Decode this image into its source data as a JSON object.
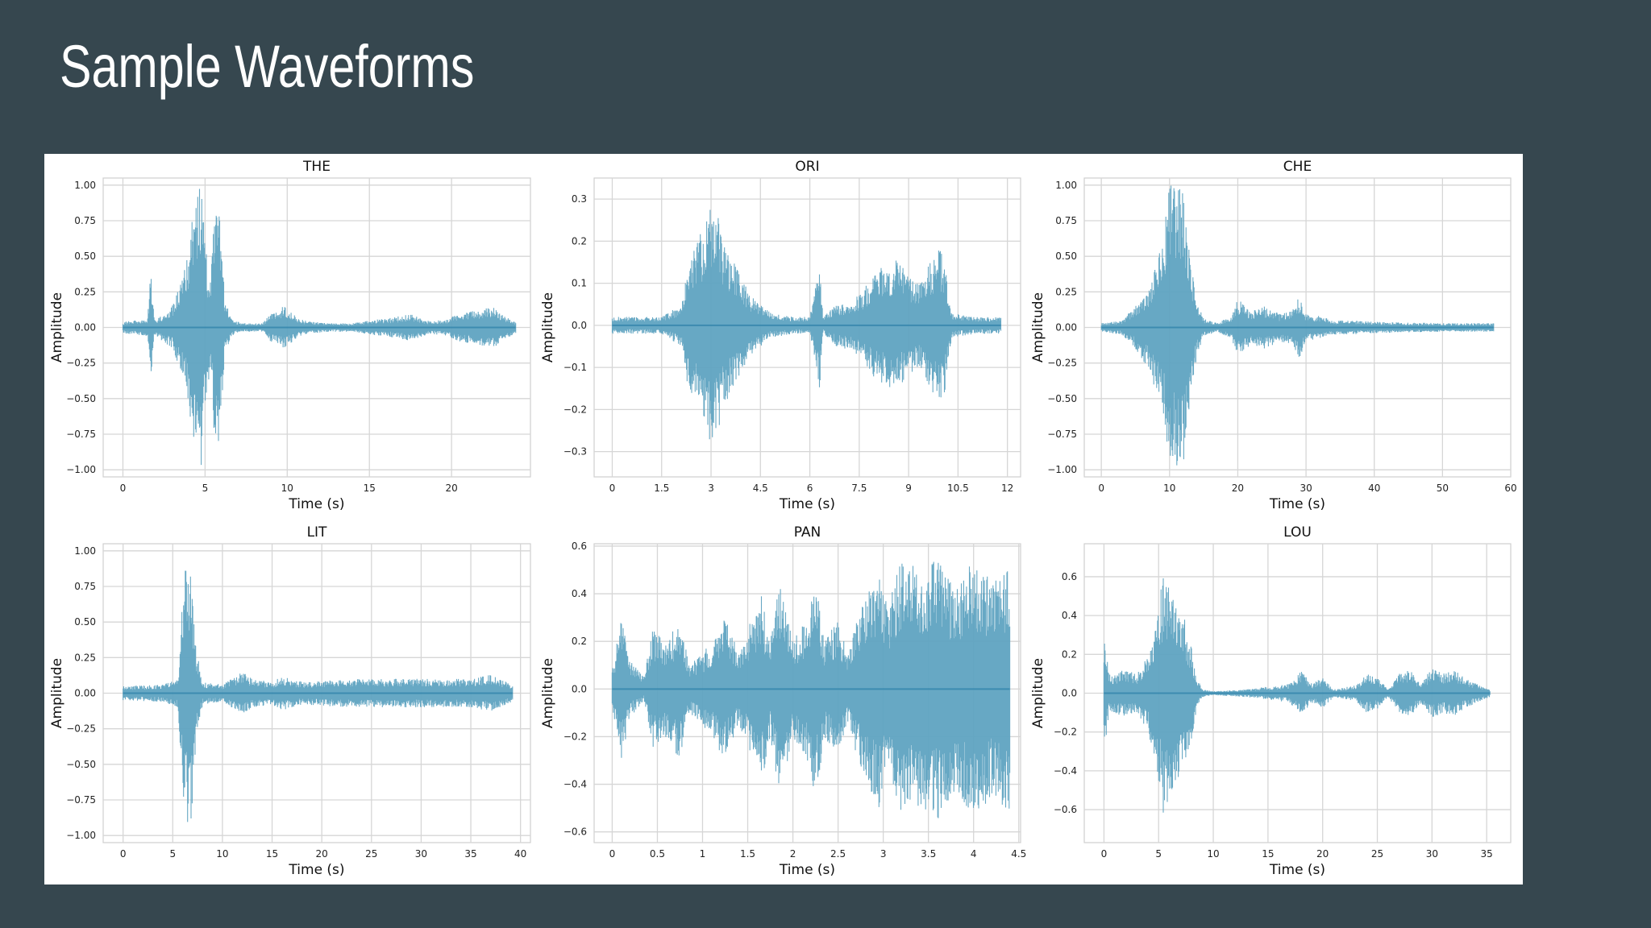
{
  "slide": {
    "title": "Sample Waveforms"
  },
  "colors": {
    "background": "#36474f",
    "panel": "#ffffff",
    "wave": "#5fa3c1",
    "wave_edge": "#3c8bb0",
    "grid": "#d6d6d6"
  },
  "chart_data": [
    {
      "type": "line",
      "title": "THE",
      "xlabel": "Time (s)",
      "ylabel": "Amplitude",
      "xlim": [
        -1.2,
        24.8
      ],
      "ylim": [
        -1.05,
        1.05
      ],
      "xticks": [
        0,
        5,
        10,
        15,
        20
      ],
      "xtick_labels": [
        "0",
        "5",
        "10",
        "15",
        "20"
      ],
      "yticks": [
        -1.0,
        -0.75,
        -0.5,
        -0.25,
        0.0,
        0.25,
        0.5,
        0.75,
        1.0
      ],
      "ytick_labels": [
        "−1.00",
        "−0.75",
        "−0.50",
        "−0.25",
        "0.00",
        "0.25",
        "0.50",
        "0.75",
        "1.00"
      ],
      "duration": 23.9,
      "envelope": [
        [
          0,
          0.04
        ],
        [
          1.5,
          0.06
        ],
        [
          1.7,
          0.4
        ],
        [
          1.9,
          0.06
        ],
        [
          2.5,
          0.1
        ],
        [
          3.0,
          0.15
        ],
        [
          3.5,
          0.3
        ],
        [
          4.0,
          0.55
        ],
        [
          4.3,
          0.9
        ],
        [
          4.5,
          1.0
        ],
        [
          4.8,
          1.0
        ],
        [
          5.0,
          0.6
        ],
        [
          5.3,
          0.3
        ],
        [
          5.6,
          0.85
        ],
        [
          5.9,
          0.8
        ],
        [
          6.2,
          0.2
        ],
        [
          6.6,
          0.06
        ],
        [
          7.2,
          0.03
        ],
        [
          8.5,
          0.03
        ],
        [
          9.0,
          0.1
        ],
        [
          9.8,
          0.15
        ],
        [
          10.5,
          0.08
        ],
        [
          11.0,
          0.05
        ],
        [
          12.5,
          0.03
        ],
        [
          14.0,
          0.03
        ],
        [
          15.0,
          0.05
        ],
        [
          16.5,
          0.07
        ],
        [
          17.5,
          0.1
        ],
        [
          18.5,
          0.05
        ],
        [
          19.5,
          0.05
        ],
        [
          20.5,
          0.1
        ],
        [
          21.5,
          0.12
        ],
        [
          22.5,
          0.15
        ],
        [
          23.0,
          0.1
        ],
        [
          23.9,
          0.04
        ]
      ]
    },
    {
      "type": "line",
      "title": "ORI",
      "xlabel": "Time (s)",
      "ylabel": "Amplitude",
      "xlim": [
        -0.55,
        12.4
      ],
      "ylim": [
        -0.36,
        0.35
      ],
      "xticks": [
        0,
        1.5,
        3,
        4.5,
        6,
        7.5,
        9,
        10.5,
        12
      ],
      "xtick_labels": [
        "0",
        "1.5",
        "3",
        "4.5",
        "6",
        "7.5",
        "9",
        "10.5",
        "12"
      ],
      "yticks": [
        -0.3,
        -0.2,
        -0.1,
        0.0,
        0.1,
        0.2,
        0.3
      ],
      "ytick_labels": [
        "−0.3",
        "−0.2",
        "−0.1",
        "0.0",
        "0.1",
        "0.2",
        "0.3"
      ],
      "duration": 11.8,
      "envelope": [
        [
          0,
          0.02
        ],
        [
          1.5,
          0.02
        ],
        [
          2.1,
          0.05
        ],
        [
          2.3,
          0.15
        ],
        [
          2.6,
          0.2
        ],
        [
          2.9,
          0.27
        ],
        [
          3.1,
          0.3
        ],
        [
          3.4,
          0.2
        ],
        [
          3.7,
          0.15
        ],
        [
          4.2,
          0.07
        ],
        [
          4.8,
          0.03
        ],
        [
          5.5,
          0.02
        ],
        [
          6.0,
          0.02
        ],
        [
          6.3,
          0.15
        ],
        [
          6.4,
          0.02
        ],
        [
          6.8,
          0.05
        ],
        [
          7.3,
          0.06
        ],
        [
          7.6,
          0.08
        ],
        [
          7.9,
          0.12
        ],
        [
          8.2,
          0.14
        ],
        [
          8.6,
          0.16
        ],
        [
          9.0,
          0.12
        ],
        [
          9.3,
          0.1
        ],
        [
          9.6,
          0.14
        ],
        [
          9.9,
          0.19
        ],
        [
          10.1,
          0.16
        ],
        [
          10.3,
          0.03
        ],
        [
          11.0,
          0.02
        ],
        [
          11.8,
          0.02
        ]
      ]
    },
    {
      "type": "line",
      "title": "CHE",
      "xlabel": "Time (s)",
      "ylabel": "Amplitude",
      "xlim": [
        -2.5,
        60.0
      ],
      "ylim": [
        -1.05,
        1.05
      ],
      "xticks": [
        0,
        10,
        20,
        30,
        40,
        50,
        60
      ],
      "xtick_labels": [
        "0",
        "10",
        "20",
        "30",
        "40",
        "50",
        "60"
      ],
      "yticks": [
        -1.0,
        -0.75,
        -0.5,
        -0.25,
        0.0,
        0.25,
        0.5,
        0.75,
        1.0
      ],
      "ytick_labels": [
        "−1.00",
        "−0.75",
        "−0.50",
        "−0.25",
        "0.00",
        "0.25",
        "0.50",
        "0.75",
        "1.00"
      ],
      "duration": 57.5,
      "envelope": [
        [
          0,
          0.03
        ],
        [
          3,
          0.05
        ],
        [
          5,
          0.15
        ],
        [
          7,
          0.3
        ],
        [
          9,
          0.6
        ],
        [
          10,
          1.0
        ],
        [
          12,
          1.0
        ],
        [
          13,
          0.5
        ],
        [
          14,
          0.2
        ],
        [
          15,
          0.06
        ],
        [
          16,
          0.05
        ],
        [
          17,
          0.03
        ],
        [
          19,
          0.08
        ],
        [
          20,
          0.2
        ],
        [
          22,
          0.12
        ],
        [
          24,
          0.15
        ],
        [
          26,
          0.1
        ],
        [
          28,
          0.12
        ],
        [
          29,
          0.22
        ],
        [
          30,
          0.1
        ],
        [
          32,
          0.08
        ],
        [
          34,
          0.05
        ],
        [
          36,
          0.05
        ],
        [
          40,
          0.04
        ],
        [
          50,
          0.03
        ],
        [
          57.5,
          0.03
        ]
      ]
    },
    {
      "type": "line",
      "title": "LIT",
      "xlabel": "Time (s)",
      "ylabel": "Amplitude",
      "xlim": [
        -2.0,
        41.0
      ],
      "ylim": [
        -1.05,
        1.05
      ],
      "xticks": [
        0,
        5,
        10,
        15,
        20,
        25,
        30,
        35,
        40
      ],
      "xtick_labels": [
        "0",
        "5",
        "10",
        "15",
        "20",
        "25",
        "30",
        "35",
        "40"
      ],
      "yticks": [
        -1.0,
        -0.75,
        -0.5,
        -0.25,
        0.0,
        0.25,
        0.5,
        0.75,
        1.0
      ],
      "ytick_labels": [
        "−1.00",
        "−0.75",
        "−0.50",
        "−0.25",
        "0.00",
        "0.25",
        "0.50",
        "0.75",
        "1.00"
      ],
      "duration": 39.2,
      "envelope": [
        [
          0,
          0.05
        ],
        [
          4,
          0.06
        ],
        [
          5.5,
          0.1
        ],
        [
          6.2,
          0.9
        ],
        [
          6.8,
          0.95
        ],
        [
          7.4,
          0.3
        ],
        [
          8,
          0.08
        ],
        [
          10,
          0.06
        ],
        [
          12,
          0.15
        ],
        [
          13,
          0.1
        ],
        [
          15,
          0.08
        ],
        [
          16,
          0.12
        ],
        [
          18,
          0.08
        ],
        [
          22,
          0.1
        ],
        [
          25,
          0.1
        ],
        [
          28,
          0.1
        ],
        [
          32,
          0.1
        ],
        [
          35,
          0.1
        ],
        [
          37,
          0.13
        ],
        [
          39.2,
          0.06
        ]
      ]
    },
    {
      "type": "line",
      "title": "PAN",
      "xlabel": "Time (s)",
      "ylabel": "Amplitude",
      "xlim": [
        -0.2,
        4.52
      ],
      "ylim": [
        -0.645,
        0.61
      ],
      "xticks": [
        0,
        0.5,
        1,
        1.5,
        2,
        2.5,
        3,
        3.5,
        4,
        4.5
      ],
      "xtick_labels": [
        "0",
        "0.5",
        "1",
        "1.5",
        "2",
        "2.5",
        "3",
        "3.5",
        "4",
        "4.5"
      ],
      "yticks": [
        -0.6,
        -0.4,
        -0.2,
        0.0,
        0.2,
        0.4,
        0.6
      ],
      "ytick_labels": [
        "−0.6",
        "−0.4",
        "−0.2",
        "0.0",
        "0.2",
        "0.4",
        "0.6"
      ],
      "duration": 4.4,
      "envelope": [
        [
          0,
          0.08
        ],
        [
          0.1,
          0.3
        ],
        [
          0.2,
          0.12
        ],
        [
          0.35,
          0.05
        ],
        [
          0.45,
          0.25
        ],
        [
          0.6,
          0.2
        ],
        [
          0.75,
          0.3
        ],
        [
          0.85,
          0.1
        ],
        [
          1.0,
          0.15
        ],
        [
          1.1,
          0.2
        ],
        [
          1.25,
          0.3
        ],
        [
          1.4,
          0.15
        ],
        [
          1.5,
          0.25
        ],
        [
          1.65,
          0.4
        ],
        [
          1.75,
          0.2
        ],
        [
          1.85,
          0.45
        ],
        [
          2.0,
          0.2
        ],
        [
          2.15,
          0.3
        ],
        [
          2.25,
          0.48
        ],
        [
          2.35,
          0.2
        ],
        [
          2.5,
          0.3
        ],
        [
          2.6,
          0.15
        ],
        [
          2.8,
          0.4
        ],
        [
          2.95,
          0.5
        ],
        [
          3.05,
          0.35
        ],
        [
          3.2,
          0.55
        ],
        [
          3.4,
          0.5
        ],
        [
          3.6,
          0.55
        ],
        [
          3.8,
          0.42
        ],
        [
          4.0,
          0.55
        ],
        [
          4.2,
          0.45
        ],
        [
          4.4,
          0.55
        ]
      ]
    },
    {
      "type": "line",
      "title": "LOU",
      "xlabel": "Time (s)",
      "ylabel": "Amplitude",
      "xlim": [
        -1.8,
        37.2
      ],
      "ylim": [
        -0.77,
        0.77
      ],
      "xticks": [
        0,
        5,
        10,
        15,
        20,
        25,
        30,
        35
      ],
      "xtick_labels": [
        "0",
        "5",
        "10",
        "15",
        "20",
        "25",
        "30",
        "35"
      ],
      "yticks": [
        -0.6,
        -0.4,
        -0.2,
        0.0,
        0.2,
        0.4,
        0.6
      ],
      "ytick_labels": [
        "−0.6",
        "−0.4",
        "−0.2",
        "0.0",
        "0.2",
        "0.4",
        "0.6"
      ],
      "duration": 35.3,
      "envelope": [
        [
          0,
          0.3
        ],
        [
          0.5,
          0.1
        ],
        [
          2,
          0.12
        ],
        [
          3,
          0.1
        ],
        [
          4,
          0.2
        ],
        [
          5,
          0.45
        ],
        [
          5.5,
          0.65
        ],
        [
          6.2,
          0.5
        ],
        [
          7,
          0.45
        ],
        [
          7.8,
          0.3
        ],
        [
          8.5,
          0.08
        ],
        [
          9,
          0.02
        ],
        [
          10,
          0.01
        ],
        [
          13,
          0.02
        ],
        [
          16,
          0.04
        ],
        [
          17,
          0.05
        ],
        [
          18,
          0.12
        ],
        [
          19,
          0.05
        ],
        [
          20,
          0.08
        ],
        [
          21,
          0.02
        ],
        [
          23,
          0.04
        ],
        [
          24,
          0.1
        ],
        [
          25,
          0.08
        ],
        [
          26,
          0.02
        ],
        [
          27,
          0.1
        ],
        [
          28,
          0.12
        ],
        [
          29,
          0.05
        ],
        [
          30,
          0.13
        ],
        [
          31,
          0.1
        ],
        [
          32,
          0.12
        ],
        [
          33,
          0.08
        ],
        [
          34,
          0.05
        ],
        [
          35.3,
          0.02
        ]
      ]
    }
  ]
}
